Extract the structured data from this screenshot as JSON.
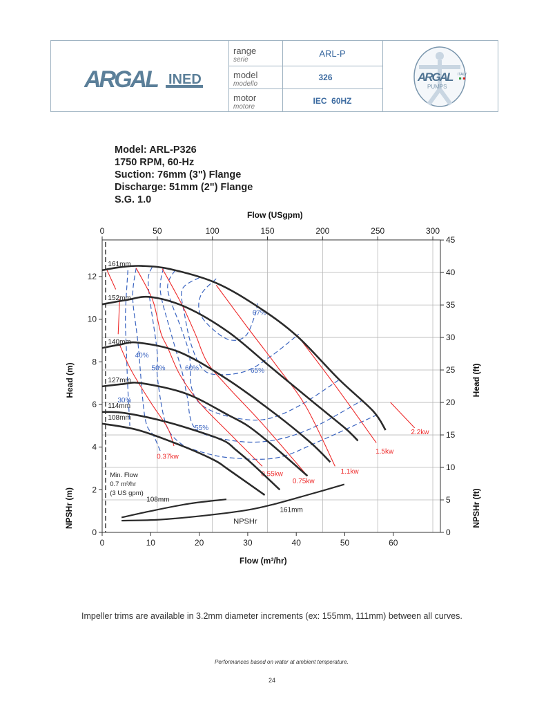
{
  "header": {
    "left_logo": "ARGAL INED",
    "right_logo": "ARGAL ITALY PUMPS",
    "rows": [
      {
        "label": "range",
        "label_it": "serie",
        "value": "ARL-P"
      },
      {
        "label": "model",
        "label_it": "modello",
        "value": "326"
      },
      {
        "label": "motor",
        "label_it": "motore",
        "value": "IEC  60HZ"
      }
    ]
  },
  "title_lines": [
    "Model: ARL-P326",
    "1750 RPM, 60-Hz",
    "Suction: 76mm (3\") Flange",
    "Discharge: 51mm (2\") Flange",
    "S.G. 1.0"
  ],
  "footer": {
    "note": "Impeller trims are available in 3.2mm diameter increments (ex: 155mm, 111mm) between all curves.",
    "disclaimer": "Performances based on water at ambient temperature.",
    "page_number": "24"
  },
  "chart_data": {
    "type": "line",
    "xlabel": "Flow (m³/hr)",
    "x2label": "Flow (USgpm)",
    "ylabel": "Head (m)",
    "y2label": "Head (ft)",
    "ylabel_npsh": "NPSHr (m)",
    "y2label_npsh": "NPSHr (ft)",
    "xlim": [
      0,
      69.7
    ],
    "ylim": [
      0,
      13.72
    ],
    "x_ticks": [
      0,
      10,
      20,
      30,
      40,
      50,
      60
    ],
    "x2_ticks": [
      0,
      50,
      100,
      150,
      200,
      250,
      300
    ],
    "y_ticks": [
      0,
      2,
      4,
      6,
      8,
      10,
      12
    ],
    "y2_ticks": [
      0,
      5,
      10,
      15,
      20,
      25,
      30,
      35,
      40,
      45
    ],
    "grid": true,
    "colors": {
      "head": "#2b2b2b",
      "power": "#ee2b2b",
      "efficiency": "#3a64c0",
      "grid": "#b8b8b8"
    },
    "head_curves": [
      {
        "name": "161mm",
        "points": [
          [
            0,
            12.3
          ],
          [
            4,
            12.45
          ],
          [
            8.1,
            12.5
          ],
          [
            14,
            12.35
          ],
          [
            23.5,
            11.7
          ],
          [
            32.3,
            10.55
          ],
          [
            40.2,
            9.2
          ],
          [
            48.7,
            7.2
          ],
          [
            55.8,
            5.7
          ],
          [
            58.4,
            4.8
          ]
        ]
      },
      {
        "name": "152mm",
        "points": [
          [
            0,
            10.7
          ],
          [
            5,
            10.9
          ],
          [
            10,
            11.04
          ],
          [
            17.4,
            10.55
          ],
          [
            26,
            9.4
          ],
          [
            34.5,
            7.8
          ],
          [
            43,
            6.2
          ],
          [
            50,
            4.9
          ],
          [
            52.7,
            4.3
          ]
        ]
      },
      {
        "name": "140mm",
        "points": [
          [
            0,
            8.65
          ],
          [
            3.5,
            8.8
          ],
          [
            7.4,
            8.9
          ],
          [
            16,
            8.45
          ],
          [
            26,
            7.15
          ],
          [
            36,
            5.5
          ],
          [
            43,
            4.2
          ],
          [
            47,
            3.3
          ]
        ]
      },
      {
        "name": "127mm",
        "points": [
          [
            0,
            6.85
          ],
          [
            4,
            6.95
          ],
          [
            8.1,
            7.0
          ],
          [
            17.4,
            6.5
          ],
          [
            26,
            5.5
          ],
          [
            30,
            5.0
          ],
          [
            34.5,
            4.2
          ],
          [
            42.3,
            2.65
          ]
        ]
      },
      {
        "name": "114mm",
        "points": [
          [
            0,
            5.65
          ],
          [
            4.6,
            5.6
          ],
          [
            13,
            5.2
          ],
          [
            21.6,
            4.6
          ],
          [
            25.5,
            4.25
          ],
          [
            27.4,
            3.9
          ],
          [
            31,
            3.2
          ],
          [
            36.6,
            2.0
          ]
        ]
      },
      {
        "name": "108mm",
        "points": [
          [
            0,
            5.1
          ],
          [
            7.4,
            4.8
          ],
          [
            16,
            4.1
          ],
          [
            23,
            3.4
          ],
          [
            26,
            2.95
          ],
          [
            33.5,
            1.75
          ]
        ]
      }
    ],
    "npshr_label": "NPSHr",
    "npshr_curves": [
      {
        "name": "108mm",
        "points": [
          [
            4,
            0.7
          ],
          [
            10,
            1.0
          ],
          [
            18,
            1.35
          ],
          [
            25.6,
            1.55
          ]
        ]
      },
      {
        "name": "161mm",
        "points": [
          [
            4,
            0.55
          ],
          [
            12,
            0.6
          ],
          [
            21.6,
            0.8
          ],
          [
            30,
            1.05
          ],
          [
            35.9,
            1.35
          ],
          [
            43,
            1.8
          ],
          [
            49.9,
            2.25
          ]
        ]
      }
    ],
    "power_lines": [
      {
        "name": "",
        "points": [
          [
            1,
            12.3
          ],
          [
            2.8,
            11.4
          ]
        ]
      },
      {
        "name": "",
        "points": [
          [
            3.6,
            10.95
          ],
          [
            3.3,
            9.3
          ]
        ]
      },
      {
        "name": "0.37kw",
        "points": [
          [
            3.6,
            8.8
          ],
          [
            6,
            7.6
          ],
          [
            10,
            6.1
          ],
          [
            13.5,
            4.9
          ],
          [
            14.8,
            4.05
          ]
        ]
      },
      {
        "name": "0.55kw",
        "points": [
          [
            7,
            12.4
          ],
          [
            9.5,
            11.35
          ],
          [
            10.7,
            10.7
          ],
          [
            12.1,
            9.35
          ],
          [
            13.5,
            8.67
          ],
          [
            16,
            7.4
          ],
          [
            20,
            6.1
          ],
          [
            26,
            4.7
          ],
          [
            33,
            3.1
          ]
        ]
      },
      {
        "name": "0.75kw",
        "points": [
          [
            12.4,
            12.37
          ],
          [
            16.4,
            10.7
          ],
          [
            19.2,
            9.3
          ],
          [
            21.6,
            8.0
          ],
          [
            26,
            6.8
          ],
          [
            33,
            5.1
          ],
          [
            42.3,
            2.65
          ]
        ]
      },
      {
        "name": "1.1kw",
        "points": [
          [
            23.5,
            11.6
          ],
          [
            30,
            9.6
          ],
          [
            36,
            7.8
          ],
          [
            42,
            5.9
          ],
          [
            48,
            3.1
          ]
        ]
      },
      {
        "name": "1.5kw",
        "points": [
          [
            40.2,
            9.25
          ],
          [
            48,
            6.9
          ],
          [
            56.5,
            4.2
          ]
        ]
      },
      {
        "name": "2.2kw",
        "points": [
          [
            59.4,
            6.1
          ],
          [
            64.4,
            4.9
          ]
        ]
      }
    ],
    "efficiency_contours": [
      {
        "name": "30%",
        "points": [
          [
            5.3,
            12.3
          ],
          [
            4.8,
            10.2
          ],
          [
            5.0,
            8.5
          ],
          [
            5.3,
            6.7
          ],
          [
            5.7,
            5.0
          ]
        ]
      },
      {
        "name": "40%",
        "points": [
          [
            7,
            12.4
          ],
          [
            6.3,
            11
          ],
          [
            7.4,
            8.85
          ],
          [
            8.8,
            5.4
          ],
          [
            10.7,
            4.5
          ],
          [
            12,
            3.8
          ]
        ]
      },
      {
        "name": "50%",
        "points": [
          [
            10.3,
            12.45
          ],
          [
            9.5,
            11.6
          ],
          [
            11.3,
            8.55
          ],
          [
            11.4,
            7.25
          ],
          [
            13.1,
            5.1
          ],
          [
            16,
            4.2
          ],
          [
            20,
            3.8
          ],
          [
            26.4,
            3.5
          ],
          [
            36,
            3.5
          ],
          [
            45,
            4.3
          ],
          [
            56.5,
            5.5
          ]
        ]
      },
      {
        "name": "55%",
        "points": [
          [
            12.6,
            12.4
          ],
          [
            12,
            11.3
          ],
          [
            14,
            9.5
          ],
          [
            16.5,
            7.5
          ],
          [
            17.5,
            6.4
          ],
          [
            19.2,
            4.87
          ],
          [
            26.4,
            4.32
          ],
          [
            34.5,
            4.29
          ],
          [
            43,
            4.87
          ],
          [
            53.4,
            6.17
          ]
        ]
      },
      {
        "name": "60%",
        "points": [
          [
            15,
            12.3
          ],
          [
            13.5,
            11.4
          ],
          [
            16.4,
            9.5
          ],
          [
            18,
            8.3
          ],
          [
            18.4,
            6.8
          ],
          [
            20.7,
            5.94
          ],
          [
            26.4,
            5.42
          ],
          [
            33.5,
            5.3
          ],
          [
            40.6,
            5.94
          ],
          [
            49.1,
            7.2
          ]
        ]
      },
      {
        "name": "65%",
        "points": [
          [
            20,
            11.95
          ],
          [
            16.5,
            11.4
          ],
          [
            17,
            10.2
          ],
          [
            18.5,
            8.7
          ],
          [
            21,
            7.6
          ],
          [
            25,
            7.4
          ],
          [
            30,
            7.6
          ],
          [
            35,
            8.3
          ],
          [
            40.5,
            9.3
          ]
        ]
      },
      {
        "name": "67%",
        "points": [
          [
            23.5,
            11.9
          ],
          [
            20.5,
            11.2
          ],
          [
            20,
            10.4
          ],
          [
            22,
            9.7
          ],
          [
            26,
            9.05
          ],
          [
            29.5,
            9.2
          ],
          [
            31.5,
            10.2
          ],
          [
            32,
            10.8
          ]
        ]
      }
    ],
    "min_flow": {
      "value": 0.7,
      "lines": [
        "Min. Flow",
        "0.7 m³/hr",
        "(3 US gpm)"
      ]
    }
  }
}
